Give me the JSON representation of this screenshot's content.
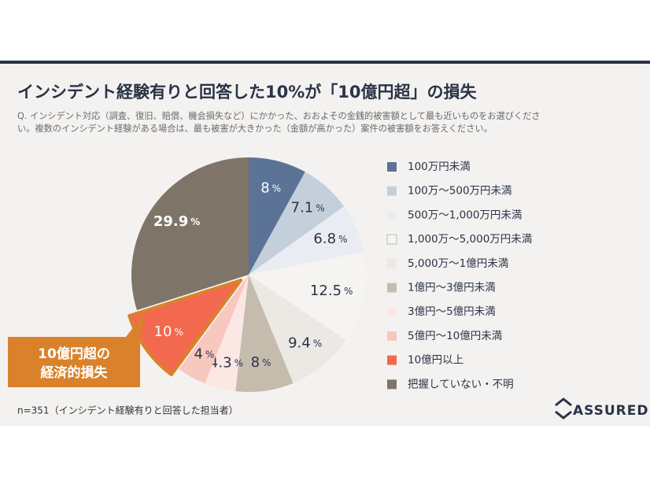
{
  "chart_data": {
    "type": "pie",
    "title": "インシデント経験有りと回答した10%が「10億円超」の損失",
    "subtitle_lines": [
      "Q. インシデント対応（調査、復旧、賠償、機会損失など）にかかった、おおよその金銭的被害額として最も近いものをお選びくださ",
      "い。複数のインシデント経験がある場合は、最も被害が大きかった（金額が高かった）案件の被害額をお答えください。"
    ],
    "categories": [
      "100万円未満",
      "100万〜500万円未満",
      "500万〜1,000万円未満",
      "1,000万〜5,000万円未満",
      "5,000万〜1億円未満",
      "1億円〜3億円未満",
      "3億円〜5億円未満",
      "5億円〜10億円未満",
      "10億円以上",
      "把握していない・不明"
    ],
    "values": [
      8,
      7.1,
      6.8,
      12.5,
      9.4,
      8,
      4.3,
      4,
      10,
      29.9
    ],
    "unit": "%",
    "colors": [
      "#5b7396",
      "#c4cfdc",
      "#e9ecf2",
      "#f6f4f1",
      "#ece9e4",
      "#c5bcae",
      "#fbe7e4",
      "#f8c7bd",
      "#f2694f",
      "#7e7568"
    ],
    "legend": "right",
    "callout": [
      "10億円超の",
      "経済的損失"
    ],
    "footnote": "n=351（インシデント経験有りと回答した担当者）",
    "brand": "ASSURED"
  }
}
